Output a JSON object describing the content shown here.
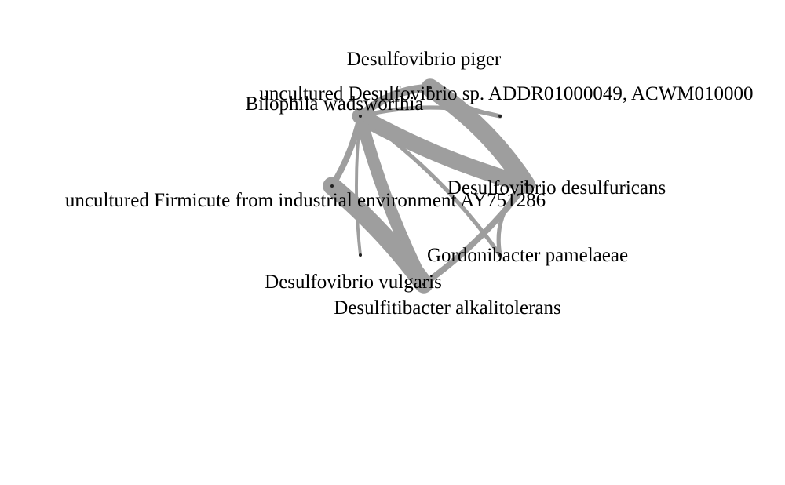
{
  "diagram": {
    "type": "network",
    "edge_color": "#9e9e9e",
    "node_color": "#222222",
    "nodes": [
      {
        "id": "piger",
        "label": "Desulfovibrio piger"
      },
      {
        "id": "unc_desulfo",
        "label": "uncultured Desulfovibrio sp. ADDR01000049, ACWM010000"
      },
      {
        "id": "bilophila",
        "label": "Bilophila wadsworthia"
      },
      {
        "id": "firmicute",
        "label": "uncultured Firmicute from industrial environment AY751286"
      },
      {
        "id": "desulfuricans",
        "label": "Desulfovibrio desulfuricans"
      },
      {
        "id": "gordoni",
        "label": "Gordonibacter pamelaeae"
      },
      {
        "id": "vulgaris",
        "label": "Desulfovibrio vulgaris"
      },
      {
        "id": "desulfiti",
        "label": "Desulfitibacter alkalitolerans"
      }
    ],
    "edges": [
      {
        "source": "bilophila",
        "target": "piger",
        "weight": 4
      },
      {
        "source": "bilophila",
        "target": "desulfuricans",
        "weight": 8
      },
      {
        "source": "bilophila",
        "target": "desulfiti",
        "weight": 6
      },
      {
        "source": "bilophila",
        "target": "firmicute",
        "weight": 3
      },
      {
        "source": "bilophila",
        "target": "vulgaris",
        "weight": 2
      },
      {
        "source": "bilophila",
        "target": "unc_desulfo",
        "weight": 2
      },
      {
        "source": "bilophila",
        "target": "gordoni",
        "weight": 1.5
      },
      {
        "source": "piger",
        "target": "desulfuricans",
        "weight": 9
      },
      {
        "source": "piger",
        "target": "unc_desulfo",
        "weight": 2
      },
      {
        "source": "firmicute",
        "target": "desulfiti",
        "weight": 9
      },
      {
        "source": "desulfuricans",
        "target": "desulfiti",
        "weight": 3
      },
      {
        "source": "desulfuricans",
        "target": "vulgaris",
        "weight": 2
      }
    ]
  }
}
